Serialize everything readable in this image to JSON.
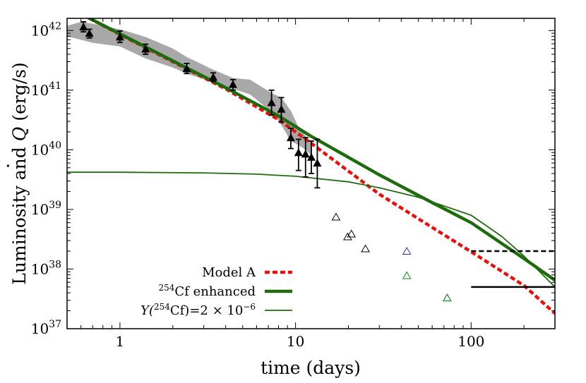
{
  "chart_data": {
    "type": "line",
    "xlabel": "time (days)",
    "ylabel_prefix": "Luminosity and ",
    "ylabel_symbol": "Q",
    "ylabel_suffix": " (erg/s)",
    "xscale": "log",
    "yscale": "log",
    "xlim": [
      0.5,
      300
    ],
    "ylim": [
      1e+37,
      1.6e+42
    ],
    "x_tick_labels": [
      {
        "value": 1,
        "label": "1"
      },
      {
        "value": 10,
        "label": "10"
      },
      {
        "value": 100,
        "label": "100"
      }
    ],
    "y_tick_labels": [
      {
        "value": 1e+37,
        "base": "10",
        "exp": "37"
      },
      {
        "value": 1e+38,
        "base": "10",
        "exp": "38"
      },
      {
        "value": 1e+39,
        "base": "10",
        "exp": "39"
      },
      {
        "value": 1e+40,
        "base": "10",
        "exp": "40"
      },
      {
        "value": 1e+41,
        "base": "10",
        "exp": "41"
      },
      {
        "value": 1e+42,
        "base": "10",
        "exp": "42"
      }
    ],
    "legend_position": "lower-left",
    "legend": [
      {
        "label": "Model A",
        "color": "#e3120b",
        "style": "dashed"
      },
      {
        "label_sup": "254",
        "label_main": "Cf enhanced",
        "color": "#1e6b0e",
        "style": "thick"
      },
      {
        "label_pre": "Y(",
        "label_sup": "254",
        "label_main": "Cf)=2 × 10",
        "label_exp": "−6",
        "color": "#1e6b0e",
        "style": "thin"
      }
    ],
    "series": [
      {
        "name": "Model A",
        "color": "#e3120b",
        "style": "dashed",
        "x": [
          0.6,
          1,
          2,
          4,
          8,
          12,
          30,
          60,
          100,
          200,
          300
        ],
        "y": [
          1.9e+42,
          8.6e+41,
          3e+41,
          1.05e+41,
          3.2e+40,
          1.35e+40,
          1.8e+39,
          5e+38,
          1.95e+38,
          5.3e+37,
          1.8e+37
        ]
      },
      {
        "color": "#1e6b0e",
        "style": "thick",
        "x": [
          0.6,
          1,
          2,
          4,
          8,
          12,
          30,
          60,
          100,
          200,
          300
        ],
        "y": [
          1.9e+42,
          8.8e+41,
          3.1e+41,
          1.1e+41,
          3.7e+40,
          1.75e+40,
          3.8e+39,
          1.3e+39,
          6e+38,
          1.5e+38,
          6.5e+37
        ]
      },
      {
        "color": "#1e6b0e",
        "style": "thin",
        "x": [
          0.5,
          1,
          3,
          6,
          10,
          20,
          30,
          50,
          100,
          150,
          200,
          300
        ],
        "y": [
          4.2e+39,
          4.2e+39,
          4.1e+39,
          3.9e+39,
          3.6e+39,
          2.9e+39,
          2.3e+39,
          1.6e+39,
          8e+38,
          3.5e+38,
          1.65e+38,
          5e+37
        ]
      }
    ],
    "observations": {
      "color": "#000000",
      "points": [
        {
          "x": 0.62,
          "y": 1.15e+42,
          "lo": 9.5e+41,
          "hi": 1.4e+42
        },
        {
          "x": 0.67,
          "y": 9e+41,
          "lo": 7.5e+41,
          "hi": 1.05e+42
        },
        {
          "x": 1.0,
          "y": 7.8e+41,
          "lo": 6.3e+41,
          "hi": 9.8e+41
        },
        {
          "x": 1.4,
          "y": 4.9e+41,
          "lo": 4e+41,
          "hi": 5.9e+41
        },
        {
          "x": 2.4,
          "y": 2.3e+41,
          "lo": 1.9e+41,
          "hi": 2.8e+41
        },
        {
          "x": 3.4,
          "y": 1.65e+41,
          "lo": 1.4e+41,
          "hi": 1.95e+41
        },
        {
          "x": 4.4,
          "y": 1.25e+41,
          "lo": 1e+41,
          "hi": 1.5e+41
        },
        {
          "x": 7.3,
          "y": 6.2e+40,
          "lo": 3.8e+40,
          "hi": 1e+41
        },
        {
          "x": 8.3,
          "y": 4.8e+40,
          "lo": 2.9e+40,
          "hi": 7.5e+40
        },
        {
          "x": 9.4,
          "y": 1.6e+40,
          "lo": 1.05e+40,
          "hi": 2.3e+40
        },
        {
          "x": 10.4,
          "y": 9e+39,
          "lo": 4.5e+39,
          "hi": 1.5e+40
        },
        {
          "x": 11.4,
          "y": 8.5e+39,
          "lo": 3.5e+39,
          "hi": 1.6e+40
        },
        {
          "x": 12.3,
          "y": 7.5e+39,
          "lo": 4e+39,
          "hi": 1.4e+40
        },
        {
          "x": 13.3,
          "y": 6e+39,
          "lo": 2.3e+39,
          "hi": 1.5e+40
        }
      ]
    },
    "uncertainty_band": {
      "color": "#a8a8a8",
      "x": [
        0.5,
        0.6,
        0.7,
        1.0,
        1.4,
        2.0,
        2.4,
        3.4,
        4.4,
        5.5,
        7.3,
        8.3,
        9.4,
        10.4,
        11.4,
        12.3,
        12.3,
        11.4,
        10.4,
        9.4,
        8.3,
        7.3,
        5.5,
        4.4,
        3.4,
        2.4,
        2.0,
        1.4,
        1.0,
        0.7,
        0.6,
        0.5
      ],
      "y": [
        1.2e+42,
        1.4e+42,
        1.3e+42,
        1.05e+42,
        7.8e+41,
        5e+41,
        3.6e+41,
        2.2e+41,
        1.6e+41,
        1.5e+41,
        9e+40,
        7.5e+40,
        4.5e+40,
        2.4e+40,
        1.7e+40,
        1.3e+40,
        8e+39,
        1e+40,
        1.2e+40,
        1.4e+40,
        2.6e+40,
        4.3e+40,
        8.5e+40,
        1.05e+41,
        1.35e+41,
        1.9e+41,
        2.4e+41,
        3.4e+41,
        5.4e+41,
        6.2e+41,
        7e+41,
        8e+41
      ]
    },
    "open_triangles": [
      {
        "x": 17,
        "y": 7.5e+38,
        "color": "#000000"
      },
      {
        "x": 19.8,
        "y": 3.5e+38,
        "color": "#000000"
      },
      {
        "x": 20.8,
        "y": 3.9e+38,
        "color": "#000000"
      },
      {
        "x": 25,
        "y": 2.2e+38,
        "color": "#000000"
      },
      {
        "x": 43,
        "y": 2e+38,
        "color": "#2233cc"
      },
      {
        "x": 43,
        "y": 7.8e+37,
        "color": "#118811"
      },
      {
        "x": 73,
        "y": 3.3e+37,
        "color": "#2233cc"
      },
      {
        "x": 73,
        "y": 3.3e+37,
        "color": "#118811"
      }
    ],
    "horizontal_limits": [
      {
        "x_from": 100,
        "x_to": 300,
        "y": 2e+38,
        "style": "dashed",
        "color": "#000000"
      },
      {
        "x_from": 100,
        "x_to": 300,
        "y": 5e+37,
        "style": "solid",
        "color": "#000000"
      }
    ]
  }
}
